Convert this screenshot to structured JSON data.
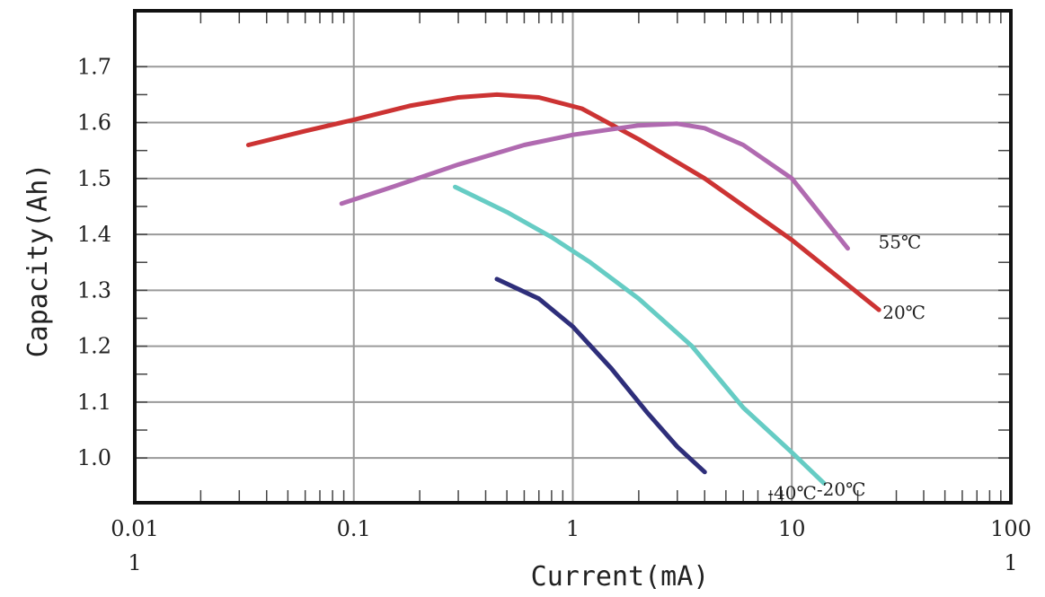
{
  "chart_data": {
    "type": "line",
    "xscale": "log",
    "xlim": [
      0.01,
      100
    ],
    "ylim": [
      0.92,
      1.8
    ],
    "grid": true,
    "xlabel": "Current(mA)",
    "ylabel": "Capacity(Ah)",
    "x_ticks": [
      {
        "value": 0.01,
        "label": "0.01"
      },
      {
        "value": 0.1,
        "label": "0.1"
      },
      {
        "value": 1,
        "label": "1"
      },
      {
        "value": 10,
        "label": "10"
      },
      {
        "value": 100,
        "label": "100"
      }
    ],
    "x_sublabels": [
      {
        "value": 0.01,
        "label": "1"
      },
      {
        "value": 100,
        "label": "1"
      }
    ],
    "y_ticks": [
      {
        "value": 1.0,
        "label": "1.0"
      },
      {
        "value": 1.1,
        "label": "1.1"
      },
      {
        "value": 1.2,
        "label": "1.2"
      },
      {
        "value": 1.3,
        "label": "1.3"
      },
      {
        "value": 1.4,
        "label": "1.4"
      },
      {
        "value": 1.5,
        "label": "1.5"
      },
      {
        "value": 1.6,
        "label": "1.6"
      },
      {
        "value": 1.7,
        "label": "1.7"
      }
    ],
    "series": [
      {
        "name": "20℃",
        "color": "#cc3333",
        "x": [
          0.033,
          0.06,
          0.1,
          0.18,
          0.3,
          0.45,
          0.7,
          1.1,
          2,
          4,
          10,
          25
        ],
        "y": [
          1.56,
          1.585,
          1.605,
          1.63,
          1.645,
          1.65,
          1.645,
          1.625,
          1.57,
          1.5,
          1.39,
          1.265
        ]
      },
      {
        "name": "55℃",
        "color": "#b06ab0",
        "x": [
          0.088,
          0.15,
          0.3,
          0.6,
          1,
          2,
          3,
          4,
          6,
          10,
          18
        ],
        "y": [
          1.455,
          1.485,
          1.525,
          1.56,
          1.578,
          1.595,
          1.598,
          1.59,
          1.56,
          1.5,
          1.375
        ]
      },
      {
        "name": "-20℃",
        "color": "#66ccc4",
        "x": [
          0.29,
          0.5,
          0.8,
          1.2,
          2,
          3.5,
          6,
          10,
          14
        ],
        "y": [
          1.485,
          1.44,
          1.395,
          1.35,
          1.285,
          1.2,
          1.09,
          1.01,
          0.955
        ]
      },
      {
        "name": "-40℃",
        "color": "#2e2e7a",
        "x": [
          0.45,
          0.7,
          1,
          1.5,
          2.2,
          3,
          4
        ],
        "y": [
          1.32,
          1.285,
          1.235,
          1.16,
          1.08,
          1.02,
          0.975
        ]
      }
    ]
  }
}
